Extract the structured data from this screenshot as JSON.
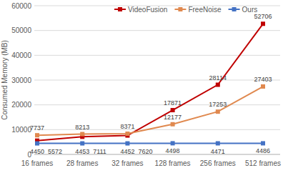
{
  "chart_data": {
    "type": "line",
    "y_label": "Consumed Memory (MB)",
    "categories": [
      "16 frames",
      "28 frames",
      "32 frames",
      "128 frames",
      "256 frames",
      "512 frames"
    ],
    "series": [
      {
        "name": "VideoFusion",
        "color": "#c00000",
        "marker": "square",
        "values": [
          5572,
          7111,
          7620,
          17871,
          28114,
          52706
        ]
      },
      {
        "name": "FreeNoise",
        "color": "#e0894f",
        "marker": "square",
        "values": [
          7737,
          8213,
          8371,
          12177,
          17253,
          27403
        ]
      },
      {
        "name": "Ours",
        "color": "#4472c4",
        "marker": "square",
        "values": [
          4450,
          4453,
          4452,
          4498,
          4471,
          4486
        ]
      }
    ],
    "ylim": [
      0,
      60000
    ],
    "yticks": [
      0,
      10000,
      20000,
      30000,
      40000,
      50000,
      60000
    ],
    "grid": true,
    "legend": "top",
    "data_labels": true
  }
}
